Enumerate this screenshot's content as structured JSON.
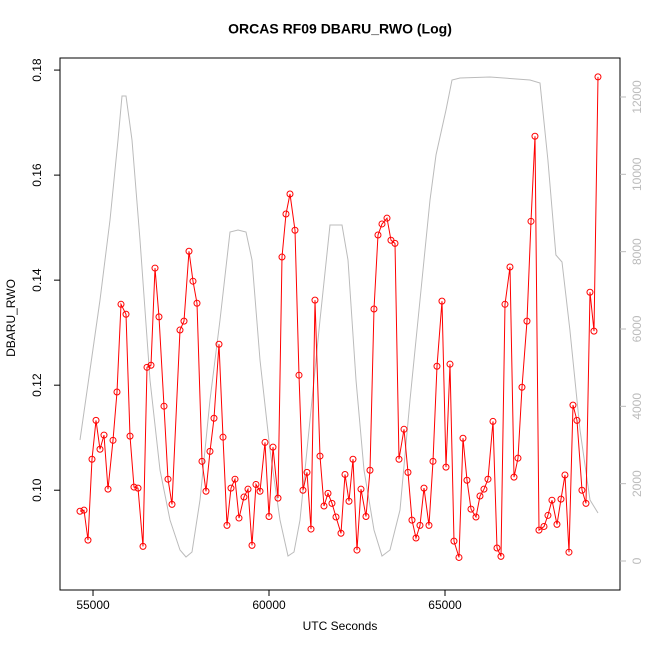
{
  "chart_data": {
    "type": "line",
    "title": "ORCAS RF09 DBARU_RWO (Log)",
    "x_label": "UTC Seconds",
    "y_label": "DBARU_RWO",
    "xlim": [
      54062,
      69972
    ],
    "xticks": [
      55000,
      60000,
      65000
    ],
    "ylim": [
      0.081,
      0.1823
    ],
    "yticks": [
      {
        "value": 0.1,
        "label": "0.10"
      },
      0.12,
      0.14,
      0.16,
      0.18
    ],
    "y2lim": [
      -750,
      13008
    ],
    "y2ticks": [
      0,
      2000,
      4000,
      6000,
      8000,
      10000,
      12000
    ],
    "y2_tick_color": "#bbbbbb",
    "series": [
      {
        "color": "#bbbbbb",
        "axis": "y2",
        "markers": false,
        "x": [
          54630,
          54914,
          55198,
          55482,
          55710,
          55823,
          55937,
          56107,
          56335,
          56619,
          56903,
          57187,
          57471,
          57642,
          57812,
          58039,
          58323,
          58607,
          58892,
          59119,
          59346,
          59517,
          59744,
          60028,
          60312,
          60539,
          60710,
          60880,
          61164,
          61448,
          61732,
          61903,
          62073,
          62244,
          62471,
          62698,
          62982,
          63210,
          63437,
          63721,
          64005,
          64289,
          64573,
          64744,
          65028,
          65198,
          65426,
          66278,
          67414,
          67698,
          67925,
          68152,
          68323,
          68550,
          68835,
          69119,
          69346
        ],
        "values": [
          3129,
          4939,
          6749,
          8818,
          10887,
          12025,
          12025,
          10887,
          8301,
          4681,
          2353,
          1060,
          284,
          103,
          233,
          1577,
          4163,
          6232,
          8508,
          8560,
          8508,
          7784,
          5198,
          2870,
          1060,
          129,
          233,
          1060,
          3646,
          6232,
          8689,
          8689,
          8689,
          7784,
          4681,
          2353,
          802,
          129,
          284,
          1319,
          4163,
          6749,
          9336,
          10499,
          11663,
          12439,
          12490,
          12516,
          12439,
          12361,
          10370,
          7913,
          7732,
          5974,
          3388,
          1577,
          1241
        ]
      },
      {
        "color": "#ff0000",
        "markers": true,
        "x": [
          54630,
          54744,
          54857,
          54971,
          55085,
          55198,
          55312,
          55426,
          55568,
          55681,
          55795,
          55937,
          56051,
          56164,
          56278,
          56420,
          56534,
          56647,
          56761,
          56874,
          57017,
          57130,
          57244,
          57471,
          57585,
          57727,
          57840,
          57954,
          58096,
          58210,
          58323,
          58437,
          58579,
          58693,
          58806,
          58920,
          59034,
          59147,
          59289,
          59403,
          59517,
          59630,
          59744,
          59886,
          60000,
          60113,
          60255,
          60369,
          60482,
          60596,
          60738,
          60852,
          60965,
          61079,
          61193,
          61306,
          61448,
          61562,
          61676,
          61789,
          61903,
          62045,
          62159,
          62272,
          62386,
          62499,
          62613,
          62755,
          62869,
          62982,
          63096,
          63210,
          63352,
          63465,
          63579,
          63693,
          63835,
          63948,
          64062,
          64176,
          64289,
          64403,
          64545,
          64659,
          64772,
          64914,
          65028,
          65142,
          65255,
          65397,
          65511,
          65624,
          65738,
          65880,
          65994,
          66107,
          66221,
          66363,
          66477,
          66590,
          66704,
          66846,
          66960,
          67073,
          67187,
          67329,
          67443,
          67556,
          67670,
          67812,
          67925,
          68039,
          68181,
          68295,
          68408,
          68522,
          68636,
          68749,
          68891,
          69005,
          69119,
          69232,
          69346
        ],
        "values": [
          0.096,
          0.0962,
          0.0905,
          0.1059,
          0.1133,
          0.1078,
          0.1105,
          0.1002,
          0.1095,
          0.1187,
          0.1354,
          0.1335,
          0.1103,
          0.1006,
          0.1004,
          0.0893,
          0.1234,
          0.1238,
          0.1423,
          0.133,
          0.116,
          0.1021,
          0.0973,
          0.1305,
          0.1322,
          0.1455,
          0.1398,
          0.1356,
          0.1055,
          0.0998,
          0.1074,
          0.1137,
          0.1278,
          0.1101,
          0.0933,
          0.1004,
          0.1021,
          0.0947,
          0.0987,
          0.1002,
          0.0895,
          0.1011,
          0.0998,
          0.1091,
          0.095,
          0.1082,
          0.0985,
          0.1444,
          0.1526,
          0.1564,
          0.1495,
          0.1219,
          0.1,
          0.1034,
          0.0926,
          0.1362,
          0.1065,
          0.097,
          0.0994,
          0.0975,
          0.0949,
          0.0918,
          0.103,
          0.0979,
          0.1059,
          0.0886,
          0.1002,
          0.095,
          0.1038,
          0.1345,
          0.1486,
          0.1507,
          0.1518,
          0.1476,
          0.147,
          0.1059,
          0.1116,
          0.1034,
          0.0943,
          0.0909,
          0.0933,
          0.1004,
          0.0933,
          0.1055,
          0.1236,
          0.136,
          0.1044,
          0.124,
          0.0903,
          0.0872,
          0.1099,
          0.1019,
          0.0964,
          0.0949,
          0.0989,
          0.1002,
          0.1021,
          0.1131,
          0.089,
          0.0874,
          0.1354,
          0.1425,
          0.1025,
          0.1061,
          0.1196,
          0.1322,
          0.1512,
          0.1674,
          0.0924,
          0.0931,
          0.0952,
          0.0981,
          0.0935,
          0.0983,
          0.1029,
          0.0882,
          0.1162,
          0.1133,
          0.1,
          0.0975,
          0.1377,
          0.1303,
          0.1787
        ]
      }
    ]
  }
}
